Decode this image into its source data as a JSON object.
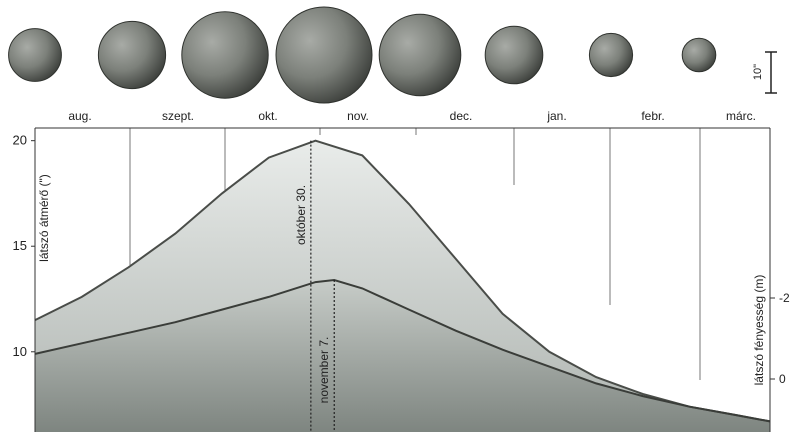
{
  "chart_data": {
    "type": "area",
    "months": [
      "aug.",
      "szept.",
      "okt.",
      "nov.",
      "dec.",
      "jan.",
      "febr.",
      "márc."
    ],
    "planet_sizes_arcsec": [
      11,
      14,
      18,
      20,
      17,
      12,
      9,
      7
    ],
    "scale_bar_label": "10\"",
    "left_axis": {
      "label": "látszó átmérő (\")",
      "ticks": [
        10,
        15,
        20
      ],
      "ylim": [
        6.2,
        20.6
      ]
    },
    "right_axis": {
      "label": "látszó fényesség (m)",
      "ticks": [
        -2,
        0
      ]
    },
    "diameter_series": {
      "x": [
        0,
        0.5,
        1,
        1.5,
        2,
        2.5,
        3,
        3.5,
        4,
        4.5,
        5,
        5.5,
        6,
        6.5,
        7,
        7.5,
        7.86
      ],
      "values": [
        11.5,
        12.6,
        14.0,
        15.6,
        17.5,
        19.2,
        20.0,
        19.3,
        17.0,
        14.4,
        11.8,
        10.0,
        8.8,
        8.0,
        7.4,
        7.0,
        6.7
      ]
    },
    "brightness_series": {
      "x": [
        0,
        0.5,
        1,
        1.5,
        2,
        2.5,
        3,
        3.2,
        3.5,
        4,
        4.5,
        5,
        5.5,
        6,
        6.5,
        7,
        7.5,
        7.86
      ],
      "values": [
        9.9,
        10.4,
        10.9,
        11.4,
        12.0,
        12.6,
        13.3,
        13.4,
        13.0,
        12.0,
        11.0,
        10.1,
        9.3,
        8.5,
        7.9,
        7.4,
        7.0,
        6.7
      ]
    },
    "annotations": [
      {
        "text": "október 30.",
        "x": 2.95
      },
      {
        "text": "november 7.",
        "x": 3.2
      }
    ]
  }
}
